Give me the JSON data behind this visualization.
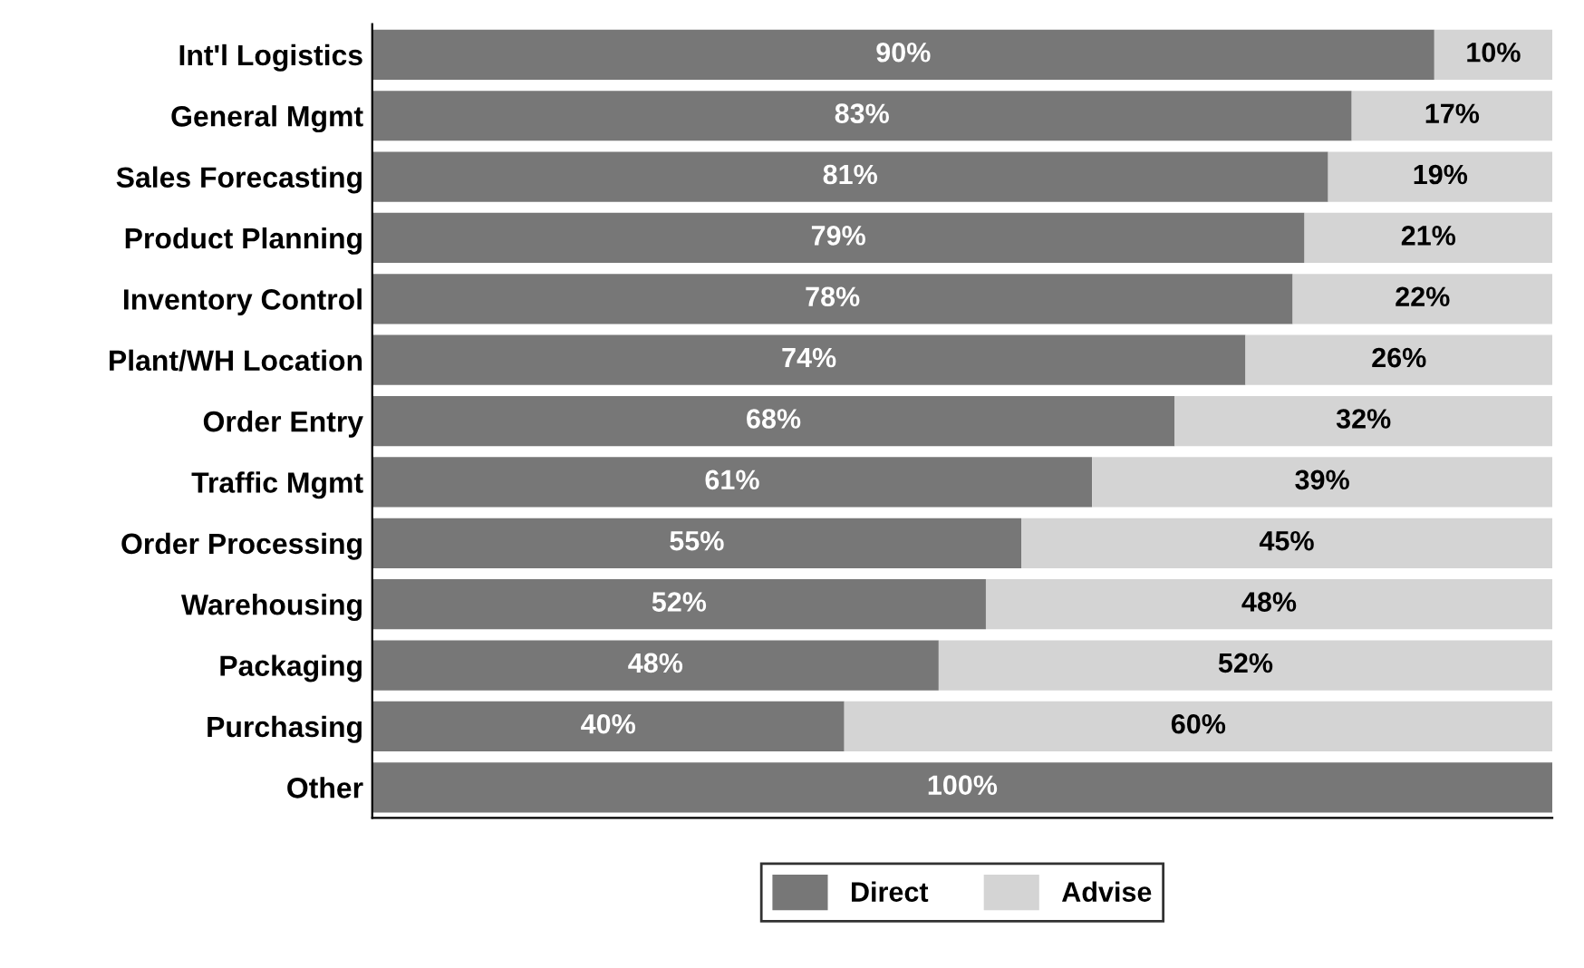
{
  "chart_data": {
    "type": "bar",
    "orientation": "horizontal",
    "stacked": true,
    "categories": [
      "Int'l Logistics",
      "General Mgmt",
      "Sales Forecasting",
      "Product Planning",
      "Inventory Control",
      "Plant/WH Location",
      "Order Entry",
      "Traffic Mgmt",
      "Order Processing",
      "Warehousing",
      "Packaging",
      "Purchasing",
      "Other"
    ],
    "series": [
      {
        "name": "Direct",
        "color": "#777777",
        "values": [
          90,
          83,
          81,
          79,
          78,
          74,
          68,
          61,
          55,
          52,
          48,
          40,
          100
        ],
        "value_labels": [
          "90%",
          "83%",
          "81%",
          "79%",
          "78%",
          "74%",
          "68%",
          "61%",
          "55%",
          "52%",
          "48%",
          "40%",
          "100%"
        ]
      },
      {
        "name": "Advise",
        "color": "#d4d4d4",
        "values": [
          10,
          17,
          19,
          21,
          22,
          26,
          32,
          39,
          45,
          48,
          52,
          60,
          null
        ],
        "value_labels": [
          "10%",
          "17%",
          "19%",
          "21%",
          "22%",
          "26%",
          "32%",
          "39%",
          "45%",
          "48%",
          "52%",
          "60%",
          null
        ]
      }
    ],
    "xlim": [
      0,
      100
    ],
    "tick_labels": "y",
    "grid": false,
    "legend": "bottom"
  }
}
